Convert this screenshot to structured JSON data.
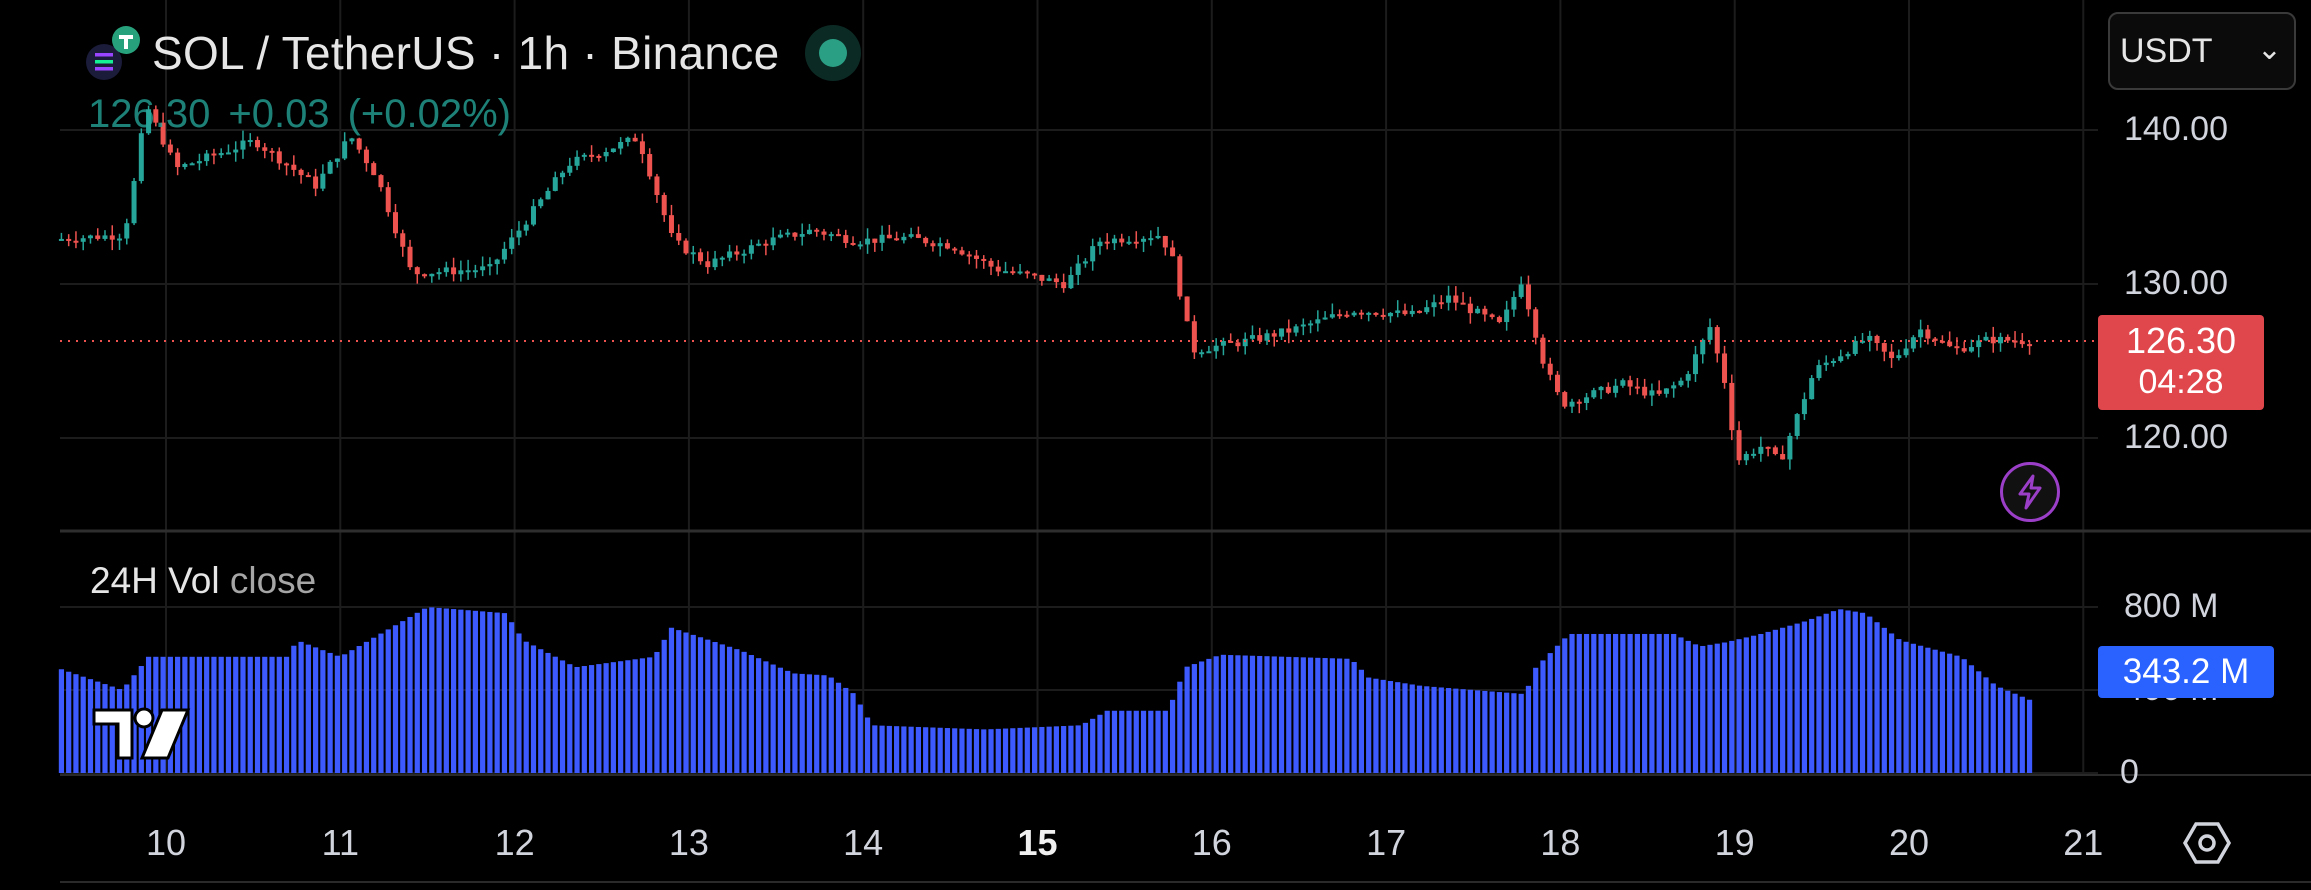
{
  "header": {
    "title": "SOL / TetherUS · 1h · Binance",
    "price": "126.30",
    "change": "+0.03",
    "change_pct": "(+0.02%)",
    "currency": "USDT"
  },
  "price_tag": {
    "price": "126.30",
    "countdown": "04:28"
  },
  "volume_indicator": {
    "label": "24H Vol",
    "suffix": "close",
    "current": "343.2 M"
  },
  "price_axis": {
    "labels": [
      {
        "text": "140.00",
        "value": 140
      },
      {
        "text": "130.00",
        "value": 130
      },
      {
        "text": "120.00",
        "value": 120
      }
    ]
  },
  "volume_axis": {
    "labels": [
      {
        "text": "800 M",
        "value": 800
      },
      {
        "text": "400 M",
        "value": 400
      },
      {
        "text": "0",
        "value": 0
      }
    ]
  },
  "time_axis": {
    "labels": [
      {
        "text": "10",
        "day": 10
      },
      {
        "text": "11",
        "day": 11
      },
      {
        "text": "12",
        "day": 12
      },
      {
        "text": "13",
        "day": 13
      },
      {
        "text": "14",
        "day": 14
      },
      {
        "text": "15",
        "day": 15,
        "bold": true
      },
      {
        "text": "16",
        "day": 16
      },
      {
        "text": "17",
        "day": 17
      },
      {
        "text": "18",
        "day": 18
      },
      {
        "text": "19",
        "day": 19
      },
      {
        "text": "20",
        "day": 20
      },
      {
        "text": "21",
        "day": 21
      }
    ]
  },
  "colors": {
    "up": "#26a69a",
    "down": "#ef5350",
    "volume": "#3d5afe",
    "price_line": "#ef5350",
    "grid": "#1c1c1c"
  },
  "icons": [
    "solana-icon",
    "live-indicator-icon",
    "chevron-down-icon",
    "lightning-icon",
    "tradingview-logo-icon",
    "settings-icon"
  ],
  "chart_data": [
    {
      "type": "candlestick",
      "interval": "1h",
      "price_range": [
        114,
        145
      ],
      "current_price": 126.3,
      "x_range_days": [
        9.4,
        21
      ],
      "anchors": [
        {
          "day": 9.4,
          "price": 132.9
        },
        {
          "day": 9.8,
          "price": 133.2
        },
        {
          "day": 9.85,
          "price": 136.0
        },
        {
          "day": 9.93,
          "price": 141.6
        },
        {
          "day": 10.1,
          "price": 137.5
        },
        {
          "day": 10.35,
          "price": 138.5
        },
        {
          "day": 10.55,
          "price": 139.3
        },
        {
          "day": 10.9,
          "price": 136.4
        },
        {
          "day": 11.1,
          "price": 139.6
        },
        {
          "day": 11.25,
          "price": 137.0
        },
        {
          "day": 11.45,
          "price": 130.7
        },
        {
          "day": 11.9,
          "price": 131.0
        },
        {
          "day": 12.1,
          "price": 134.0
        },
        {
          "day": 12.35,
          "price": 137.8
        },
        {
          "day": 12.75,
          "price": 139.5
        },
        {
          "day": 12.95,
          "price": 132.8
        },
        {
          "day": 13.15,
          "price": 131.3
        },
        {
          "day": 13.5,
          "price": 132.8
        },
        {
          "day": 13.75,
          "price": 133.5
        },
        {
          "day": 14.0,
          "price": 132.8
        },
        {
          "day": 14.3,
          "price": 133.0
        },
        {
          "day": 14.55,
          "price": 132.5
        },
        {
          "day": 14.8,
          "price": 131.0
        },
        {
          "day": 15.2,
          "price": 130.0
        },
        {
          "day": 15.4,
          "price": 132.8
        },
        {
          "day": 15.75,
          "price": 133.2
        },
        {
          "day": 15.82,
          "price": 131.5
        },
        {
          "day": 15.93,
          "price": 125.7
        },
        {
          "day": 16.2,
          "price": 126.2
        },
        {
          "day": 16.5,
          "price": 127.0
        },
        {
          "day": 16.85,
          "price": 128.3
        },
        {
          "day": 17.2,
          "price": 128.0
        },
        {
          "day": 17.4,
          "price": 129.1
        },
        {
          "day": 17.7,
          "price": 127.3
        },
        {
          "day": 17.82,
          "price": 130.3
        },
        {
          "day": 17.86,
          "price": 128.5
        },
        {
          "day": 17.95,
          "price": 124.7
        },
        {
          "day": 18.05,
          "price": 122.2
        },
        {
          "day": 18.4,
          "price": 123.5
        },
        {
          "day": 18.6,
          "price": 122.7
        },
        {
          "day": 18.75,
          "price": 123.8
        },
        {
          "day": 18.9,
          "price": 127.2
        },
        {
          "day": 19.0,
          "price": 123.0
        },
        {
          "day": 19.05,
          "price": 118.5
        },
        {
          "day": 19.2,
          "price": 119.5
        },
        {
          "day": 19.3,
          "price": 118.4
        },
        {
          "day": 19.5,
          "price": 124.4
        },
        {
          "day": 19.8,
          "price": 126.5
        },
        {
          "day": 19.95,
          "price": 125.0
        },
        {
          "day": 20.1,
          "price": 127.1
        },
        {
          "day": 20.3,
          "price": 125.7
        },
        {
          "day": 20.5,
          "price": 126.4
        },
        {
          "day": 20.72,
          "price": 126.3
        }
      ]
    },
    {
      "type": "bar",
      "title": "24H Vol close",
      "value_range": [
        0,
        800
      ],
      "unit": "M",
      "anchors": [
        {
          "day": 9.4,
          "value": 500
        },
        {
          "day": 9.75,
          "value": 400
        },
        {
          "day": 9.9,
          "value": 560
        },
        {
          "day": 10.7,
          "value": 560
        },
        {
          "day": 10.75,
          "value": 640
        },
        {
          "day": 11.0,
          "value": 560
        },
        {
          "day": 11.25,
          "value": 680
        },
        {
          "day": 11.5,
          "value": 800
        },
        {
          "day": 11.95,
          "value": 770
        },
        {
          "day": 12.05,
          "value": 640
        },
        {
          "day": 12.35,
          "value": 510
        },
        {
          "day": 12.8,
          "value": 560
        },
        {
          "day": 12.9,
          "value": 700
        },
        {
          "day": 13.3,
          "value": 590
        },
        {
          "day": 13.6,
          "value": 480
        },
        {
          "day": 13.8,
          "value": 470
        },
        {
          "day": 13.95,
          "value": 380
        },
        {
          "day": 14.05,
          "value": 230
        },
        {
          "day": 14.7,
          "value": 210
        },
        {
          "day": 15.25,
          "value": 230
        },
        {
          "day": 15.4,
          "value": 300
        },
        {
          "day": 15.75,
          "value": 300
        },
        {
          "day": 15.85,
          "value": 510
        },
        {
          "day": 16.05,
          "value": 570
        },
        {
          "day": 16.8,
          "value": 550
        },
        {
          "day": 16.9,
          "value": 460
        },
        {
          "day": 17.2,
          "value": 420
        },
        {
          "day": 17.8,
          "value": 380
        },
        {
          "day": 17.85,
          "value": 500
        },
        {
          "day": 18.05,
          "value": 670
        },
        {
          "day": 18.65,
          "value": 670
        },
        {
          "day": 18.8,
          "value": 610
        },
        {
          "day": 18.95,
          "value": 630
        },
        {
          "day": 19.15,
          "value": 670
        },
        {
          "day": 19.4,
          "value": 730
        },
        {
          "day": 19.6,
          "value": 790
        },
        {
          "day": 19.75,
          "value": 770
        },
        {
          "day": 19.95,
          "value": 640
        },
        {
          "day": 20.3,
          "value": 560
        },
        {
          "day": 20.5,
          "value": 420
        },
        {
          "day": 20.72,
          "value": 343.2
        }
      ]
    }
  ]
}
